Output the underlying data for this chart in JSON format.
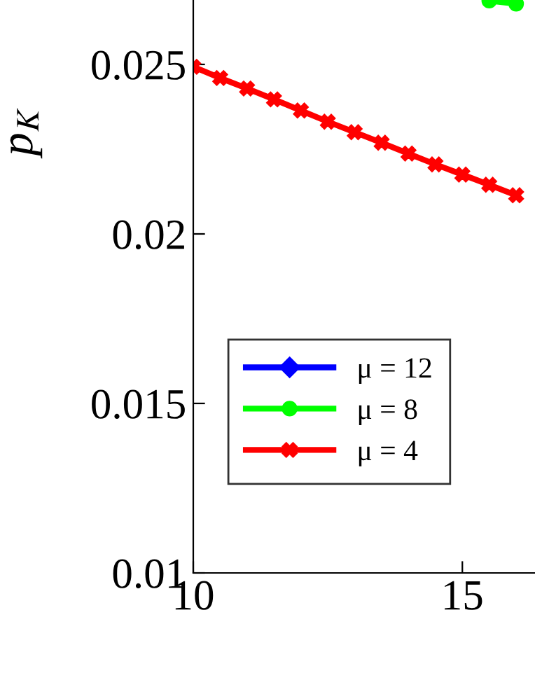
{
  "chart_data": {
    "type": "line",
    "ylabel": "p$_{K}$",
    "xlim": [
      10,
      16.35
    ],
    "ylim": [
      0.01,
      0.0269
    ],
    "xticks": [
      10,
      15
    ],
    "yticks": [
      0.01,
      0.015,
      0.02,
      0.025
    ],
    "grid": false,
    "legend": "bottom left",
    "line_style": "solid",
    "series": [
      {
        "name": "μ = 12",
        "color": "#0000ff",
        "marker": "diamond"
      },
      {
        "name": "μ = 8",
        "color": "#00ff00",
        "marker": "circle",
        "x": [
          15.5,
          16
        ],
        "values": [
          0.02688,
          0.02679
        ]
      },
      {
        "name": "μ = 4",
        "color": "#ff0000",
        "marker": "cross",
        "x": [
          10,
          10.5,
          11,
          11.5,
          12,
          12.5,
          13,
          13.5,
          14,
          14.5,
          15,
          15.5,
          16
        ],
        "values": [
          0.02493,
          0.0246,
          0.02429,
          0.02397,
          0.02364,
          0.02331,
          0.023,
          0.02269,
          0.02237,
          0.02205,
          0.02175,
          0.02145,
          0.02114
        ]
      }
    ]
  }
}
